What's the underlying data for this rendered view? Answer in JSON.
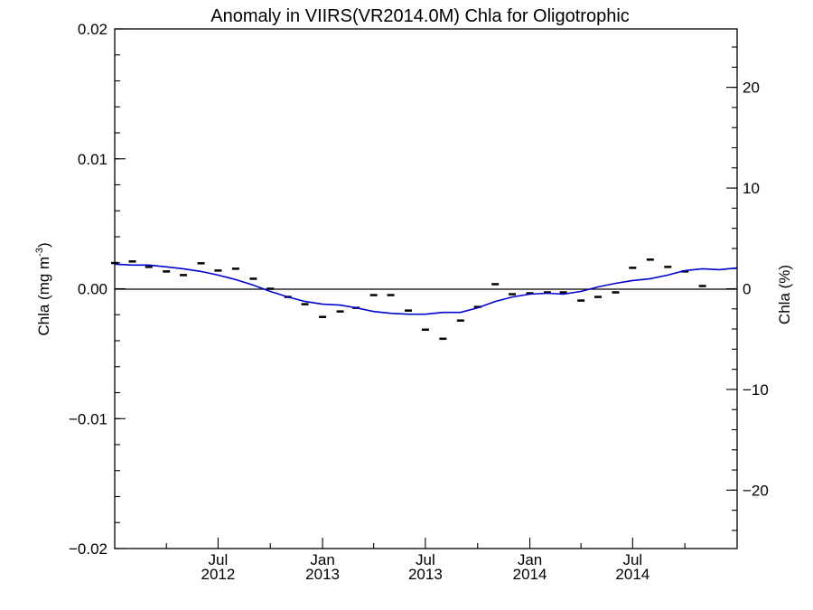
{
  "chart_data": {
    "type": "line",
    "title": "Anomaly in VIIRS(VR2014.0M) Chla for Oligotrophic",
    "ylabel_left": "Chla (mg m",
    "ylabel_left_exponent": "-3",
    "ylabel_left_close": ")",
    "ylabel_right": "Chla (%)",
    "x_range": [
      "2012-01-01",
      "2015-01-01"
    ],
    "ylim": [
      -0.02,
      0.02
    ],
    "y2lim": [
      -25.8,
      25.8
    ],
    "y_ticks": [
      {
        "value": 0.02,
        "label": "0.02"
      },
      {
        "value": 0.01,
        "label": "0.01"
      },
      {
        "value": 0.0,
        "label": "0.00"
      },
      {
        "value": -0.01,
        "label": "−0.01"
      },
      {
        "value": -0.02,
        "label": "−0.02"
      }
    ],
    "y2_ticks": [
      {
        "value": 20,
        "label": "20"
      },
      {
        "value": 10,
        "label": "10"
      },
      {
        "value": 0,
        "label": "0"
      },
      {
        "value": -10,
        "label": "−10"
      },
      {
        "value": -20,
        "label": "−20"
      }
    ],
    "x_ticks": [
      {
        "date": "2012-07-01",
        "month": "Jul",
        "year": "2012"
      },
      {
        "date": "2013-01-01",
        "month": "Jan",
        "year": "2013"
      },
      {
        "date": "2013-07-01",
        "month": "Jul",
        "year": "2013"
      },
      {
        "date": "2014-01-01",
        "month": "Jan",
        "year": "2014"
      },
      {
        "date": "2014-07-01",
        "month": "Jul",
        "year": "2014"
      }
    ],
    "x_minor_ticks": [
      "2012-04-01",
      "2012-10-01",
      "2013-04-01",
      "2013-10-01",
      "2014-04-01",
      "2014-10-01"
    ],
    "zero_line": true,
    "grid": false,
    "series": [
      {
        "marker": "dash",
        "color": "#000000",
        "points": [
          {
            "x": "2012-01-01",
            "y": 0.00198
          },
          {
            "x": "2012-02-01",
            "y": 0.0021
          },
          {
            "x": "2012-03-01",
            "y": 0.00168
          },
          {
            "x": "2012-04-01",
            "y": 0.00133
          },
          {
            "x": "2012-05-01",
            "y": 0.00105
          },
          {
            "x": "2012-06-01",
            "y": 0.00196
          },
          {
            "x": "2012-07-01",
            "y": 0.0014
          },
          {
            "x": "2012-08-01",
            "y": 0.00154
          },
          {
            "x": "2012-09-01",
            "y": 0.00077
          },
          {
            "x": "2012-10-01",
            "y": 0.0
          },
          {
            "x": "2012-11-01",
            "y": -0.00063
          },
          {
            "x": "2012-12-01",
            "y": -0.00119
          },
          {
            "x": "2013-01-01",
            "y": -0.00217
          },
          {
            "x": "2013-02-01",
            "y": -0.00175
          },
          {
            "x": "2013-03-01",
            "y": -0.00147
          },
          {
            "x": "2013-04-01",
            "y": -0.00049
          },
          {
            "x": "2013-05-01",
            "y": -0.00049
          },
          {
            "x": "2013-06-01",
            "y": -0.00168
          },
          {
            "x": "2013-07-01",
            "y": -0.00315
          },
          {
            "x": "2013-08-01",
            "y": -0.00385
          },
          {
            "x": "2013-09-01",
            "y": -0.00245
          },
          {
            "x": "2013-10-01",
            "y": -0.0014
          },
          {
            "x": "2013-11-01",
            "y": 0.00035
          },
          {
            "x": "2013-12-01",
            "y": -0.00042
          },
          {
            "x": "2014-01-01",
            "y": -0.00035
          },
          {
            "x": "2014-02-01",
            "y": -0.00028
          },
          {
            "x": "2014-03-01",
            "y": -0.00028
          },
          {
            "x": "2014-04-01",
            "y": -0.00091
          },
          {
            "x": "2014-05-01",
            "y": -0.00063
          },
          {
            "x": "2014-06-01",
            "y": -0.00028
          },
          {
            "x": "2014-07-01",
            "y": 0.00161
          },
          {
            "x": "2014-08-01",
            "y": 0.00224
          },
          {
            "x": "2014-09-01",
            "y": 0.00168
          },
          {
            "x": "2014-10-01",
            "y": 0.00133
          },
          {
            "x": "2014-11-01",
            "y": 0.00021
          }
        ]
      },
      {
        "marker": "line",
        "color": "#0000d0",
        "points": [
          {
            "x": "2012-01-01",
            "y": 0.00189
          },
          {
            "x": "2012-02-01",
            "y": 0.00182
          },
          {
            "x": "2012-03-01",
            "y": 0.00182
          },
          {
            "x": "2012-04-01",
            "y": 0.00168
          },
          {
            "x": "2012-05-01",
            "y": 0.00154
          },
          {
            "x": "2012-06-01",
            "y": 0.00133
          },
          {
            "x": "2012-07-01",
            "y": 0.00105
          },
          {
            "x": "2012-08-01",
            "y": 0.0007
          },
          {
            "x": "2012-09-01",
            "y": 0.00028
          },
          {
            "x": "2012-10-01",
            "y": -0.00021
          },
          {
            "x": "2012-11-01",
            "y": -0.00063
          },
          {
            "x": "2012-12-01",
            "y": -0.00098
          },
          {
            "x": "2013-01-01",
            "y": -0.00119
          },
          {
            "x": "2013-02-01",
            "y": -0.00126
          },
          {
            "x": "2013-03-01",
            "y": -0.00147
          },
          {
            "x": "2013-04-01",
            "y": -0.00175
          },
          {
            "x": "2013-05-01",
            "y": -0.00189
          },
          {
            "x": "2013-06-01",
            "y": -0.00196
          },
          {
            "x": "2013-07-01",
            "y": -0.00196
          },
          {
            "x": "2013-08-01",
            "y": -0.00182
          },
          {
            "x": "2013-09-01",
            "y": -0.00182
          },
          {
            "x": "2013-10-01",
            "y": -0.00147
          },
          {
            "x": "2013-11-01",
            "y": -0.00098
          },
          {
            "x": "2013-12-01",
            "y": -0.00063
          },
          {
            "x": "2014-01-01",
            "y": -0.00042
          },
          {
            "x": "2014-02-01",
            "y": -0.00035
          },
          {
            "x": "2014-03-01",
            "y": -0.00042
          },
          {
            "x": "2014-04-01",
            "y": -0.00021
          },
          {
            "x": "2014-05-01",
            "y": 0.00014
          },
          {
            "x": "2014-06-01",
            "y": 0.00042
          },
          {
            "x": "2014-07-01",
            "y": 0.00063
          },
          {
            "x": "2014-08-01",
            "y": 0.00077
          },
          {
            "x": "2014-09-01",
            "y": 0.00105
          },
          {
            "x": "2014-10-01",
            "y": 0.0014
          },
          {
            "x": "2014-11-01",
            "y": 0.00154
          },
          {
            "x": "2014-12-01",
            "y": 0.00147
          },
          {
            "x": "2015-01-01",
            "y": 0.00161
          }
        ]
      }
    ]
  }
}
